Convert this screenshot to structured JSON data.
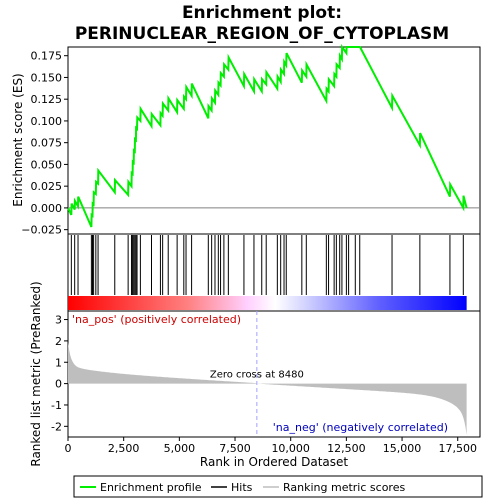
{
  "chart_data": {
    "type": "line",
    "title_line1": "Enrichment plot:",
    "title_line2": "PERINUCLEAR_REGION_OF_CYTOPLASM",
    "es_panel": {
      "ylabel": "Enrichment score (ES)",
      "ylim": [
        -0.03,
        0.185
      ],
      "yticks": [
        -0.025,
        0.0,
        0.025,
        0.05,
        0.075,
        0.1,
        0.125,
        0.15,
        0.175
      ],
      "ytick_labels": [
        "−0.025",
        "0.000",
        "0.025",
        "0.050",
        "0.075",
        "0.100",
        "0.125",
        "0.150",
        "0.175"
      ],
      "grid": false
    },
    "metric_panel": {
      "ylabel": "Ranked list metric (PreRanked)",
      "ylim": [
        -2.5,
        3.4
      ],
      "yticks": [
        -2,
        -1,
        0,
        1,
        2,
        3
      ],
      "ytick_labels": [
        "-2",
        "-1",
        "0",
        "1",
        "2",
        "3"
      ],
      "pos_label": "'na_pos' (positively correlated)",
      "neg_label": "'na_neg' (negatively correlated)",
      "zero_cross_label": "Zero cross at 8480",
      "zero_cross": 8480
    },
    "xlabel": "Rank in Ordered Dataset",
    "xlim": [
      0,
      18500
    ],
    "xticks": [
      0,
      2500,
      5000,
      7500,
      10000,
      12500,
      15000,
      17500
    ],
    "xtick_labels": [
      "0",
      "2,500",
      "5,000",
      "7,500",
      "10,000",
      "12,500",
      "15,000",
      "17,500"
    ],
    "n_genes": 17900,
    "hits": [
      150,
      300,
      450,
      1050,
      1100,
      1150,
      1250,
      1350,
      2100,
      2700,
      2850,
      2900,
      2950,
      3000,
      3050,
      3100,
      3250,
      3750,
      4150,
      4250,
      4500,
      4900,
      5200,
      5300,
      5550,
      6300,
      6450,
      6600,
      6750,
      6850,
      7000,
      7200,
      7900,
      8350,
      8700,
      8900,
      9400,
      9550,
      9700,
      9800,
      10500,
      10700,
      11600,
      11700,
      11950,
      12050,
      12200,
      12300,
      12500,
      12600,
      12900,
      13100,
      14550,
      15800,
      17150,
      17750
    ],
    "es_curve": {
      "x": [
        0,
        150,
        160,
        300,
        310,
        450,
        460,
        1050,
        1060,
        1100,
        1110,
        1150,
        1160,
        1250,
        1260,
        1350,
        1360,
        2100,
        2110,
        2700,
        2710,
        2850,
        2860,
        2900,
        2910,
        2950,
        2960,
        3000,
        3010,
        3050,
        3060,
        3100,
        3110,
        3250,
        3260,
        3750,
        3760,
        4150,
        4160,
        4250,
        4260,
        4500,
        4510,
        4900,
        4910,
        5200,
        5210,
        5300,
        5310,
        5550,
        5560,
        6300,
        6310,
        6450,
        6460,
        6600,
        6610,
        6750,
        6760,
        6850,
        6860,
        7000,
        7010,
        7200,
        7210,
        7900,
        7910,
        8350,
        8360,
        8700,
        8710,
        8900,
        8910,
        9400,
        9410,
        9550,
        9560,
        9700,
        9710,
        9800,
        9810,
        10500,
        10510,
        10700,
        10710,
        11600,
        11610,
        11700,
        11710,
        11950,
        11960,
        12050,
        12060,
        12200,
        12210,
        12300,
        12310,
        12500,
        12510,
        12600,
        12610,
        12900,
        12910,
        13100,
        13110,
        14550,
        14560,
        15800,
        15810,
        17150,
        17160,
        17750,
        17760,
        17900
      ],
      "y": [
        0.0,
        -0.008,
        0.005,
        -0.002,
        0.008,
        0.002,
        0.013,
        -0.022,
        -0.008,
        -0.009,
        0.005,
        0.004,
        0.018,
        0.016,
        0.03,
        0.028,
        0.043,
        0.018,
        0.032,
        0.015,
        0.03,
        0.025,
        0.04,
        0.039,
        0.053,
        0.052,
        0.066,
        0.065,
        0.079,
        0.078,
        0.092,
        0.091,
        0.104,
        0.1,
        0.114,
        0.094,
        0.108,
        0.095,
        0.109,
        0.106,
        0.12,
        0.112,
        0.126,
        0.11,
        0.124,
        0.114,
        0.128,
        0.125,
        0.139,
        0.129,
        0.143,
        0.103,
        0.117,
        0.112,
        0.126,
        0.121,
        0.135,
        0.13,
        0.144,
        0.141,
        0.155,
        0.151,
        0.165,
        0.159,
        0.173,
        0.14,
        0.154,
        0.134,
        0.148,
        0.134,
        0.148,
        0.142,
        0.156,
        0.137,
        0.151,
        0.145,
        0.159,
        0.154,
        0.168,
        0.164,
        0.178,
        0.144,
        0.158,
        0.151,
        0.165,
        0.123,
        0.137,
        0.134,
        0.148,
        0.14,
        0.154,
        0.151,
        0.165,
        0.161,
        0.175,
        0.171,
        0.185,
        0.178,
        0.192,
        0.188,
        0.202,
        0.19,
        0.204,
        0.198,
        0.212,
        0.115,
        0.129,
        0.072,
        0.086,
        0.013,
        0.027,
        0.0,
        0.014,
        0.0
      ]
    },
    "colors": {
      "es_line": "#00ee00",
      "hits": "#000000",
      "metric_fill": "#bebebe",
      "zero_line": "#a0a0ff",
      "pos_label": "#cc0000",
      "neg_label": "#0000bb",
      "bar_red": "#ff0000",
      "bar_white": "#ffffff",
      "bar_blue": "#0000ff"
    },
    "legend": {
      "placement": "bottom",
      "items": [
        {
          "label": "Enrichment profile",
          "color": "#00ee00",
          "kind": "line"
        },
        {
          "label": "Hits",
          "color": "#000000",
          "kind": "line"
        },
        {
          "label": "Ranking metric scores",
          "color": "#bebebe",
          "kind": "line"
        }
      ]
    }
  }
}
